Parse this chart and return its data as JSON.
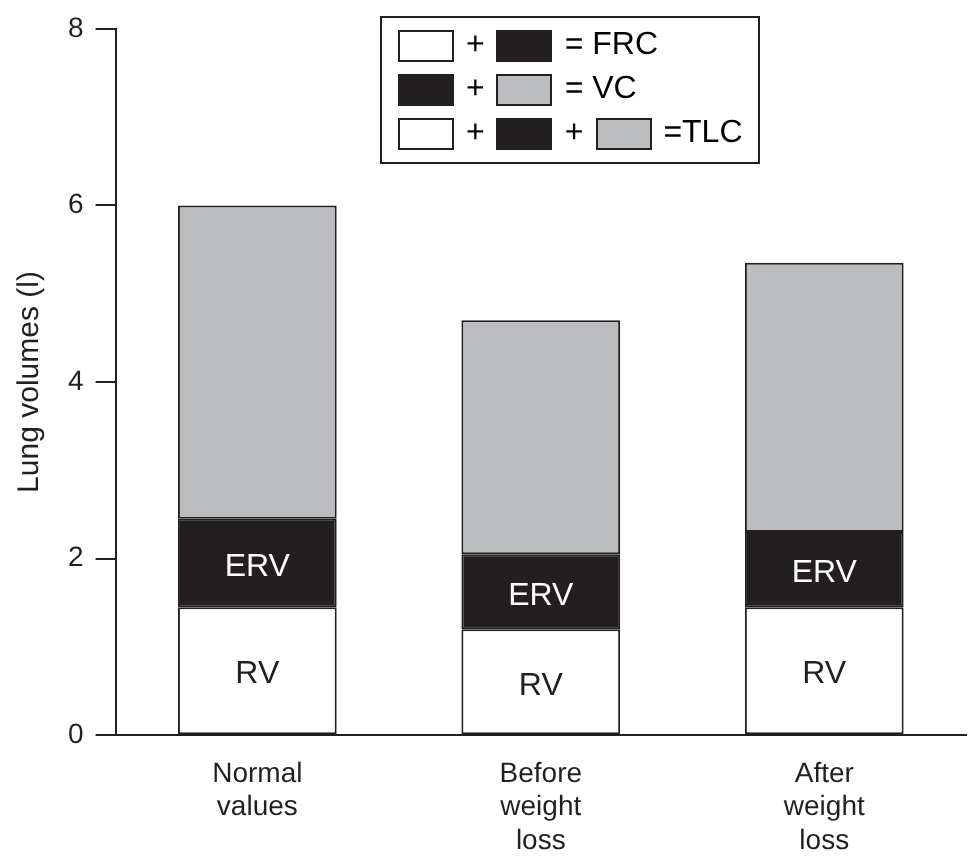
{
  "chart_data": {
    "type": "bar",
    "stacked": true,
    "ylabel": "Lung volumes (l)",
    "categories": [
      "Normal values",
      "Before weight loss",
      "After weight loss"
    ],
    "series": [
      {
        "name": "RV",
        "color": "#ffffff",
        "values": [
          1.45,
          1.2,
          1.45
        ]
      },
      {
        "name": "ERV",
        "color": "#231f20",
        "values": [
          1.0,
          0.85,
          0.85
        ]
      },
      {
        "color": "#bcbdc0",
        "values": [
          3.55,
          2.65,
          3.05
        ]
      }
    ],
    "ylim": [
      0,
      8
    ],
    "yticks": [
      0,
      2,
      4,
      6,
      8
    ],
    "grid": false,
    "annotations": [
      "+",
      "= FRC",
      "+",
      "= VC",
      "+",
      "+",
      "=TLC"
    ]
  }
}
